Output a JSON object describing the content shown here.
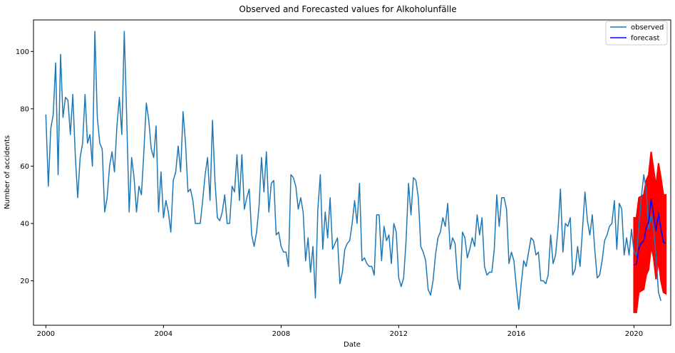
{
  "chart_data": {
    "type": "line",
    "title": "Observed and Forecasted values for Alkoholunfälle",
    "xlabel": "Date",
    "ylabel": "Number of accidents",
    "xlim": [
      1999.58,
      2021.25
    ],
    "ylim": [
      4.5,
      111
    ],
    "x_ticks": [
      2000,
      2004,
      2008,
      2012,
      2016,
      2020
    ],
    "x_tick_labels": [
      "2000",
      "2004",
      "2008",
      "2012",
      "2016",
      "2020"
    ],
    "y_ticks": [
      20,
      40,
      60,
      80,
      100
    ],
    "y_tick_labels": [
      "20",
      "40",
      "60",
      "80",
      "100"
    ],
    "grid": false,
    "legend": {
      "placement": "top-right",
      "entries": [
        "observed",
        "forecast"
      ]
    },
    "colors": {
      "observed": "#1f77b4",
      "forecast": "#0000ff",
      "interval": "#ff0000"
    },
    "series": [
      {
        "name": "observed",
        "start": "2000-01",
        "frequency": "monthly",
        "values": [
          78,
          53,
          73,
          78,
          96,
          57,
          99,
          77,
          84,
          83,
          71,
          85,
          64,
          49,
          63,
          68,
          85,
          68,
          71,
          60,
          107,
          77,
          68,
          66,
          44,
          49,
          60,
          65,
          58,
          74,
          84,
          71,
          107,
          77,
          44,
          63,
          56,
          44,
          53,
          50,
          65,
          82,
          76,
          66,
          63,
          74,
          44,
          58,
          42,
          48,
          44,
          37,
          55,
          58,
          67,
          58,
          79,
          68,
          51,
          52,
          48,
          40,
          40,
          40,
          48,
          57,
          63,
          48,
          76,
          55,
          42,
          41,
          44,
          50,
          40,
          40,
          53,
          51,
          64,
          48,
          64,
          45,
          49,
          52,
          36,
          32,
          37,
          46,
          63,
          51,
          65,
          44,
          54,
          55,
          36,
          37,
          32,
          30,
          30,
          25,
          57,
          56,
          53,
          45,
          49,
          44,
          27,
          35,
          23,
          32,
          14,
          45,
          57,
          31,
          44,
          35,
          49,
          31,
          33,
          35,
          19,
          23,
          31,
          33,
          34,
          40,
          48,
          40,
          54,
          27,
          28,
          26,
          25,
          25,
          22,
          43,
          43,
          27,
          39,
          34,
          36,
          26,
          40,
          37,
          21,
          18,
          21,
          34,
          54,
          43,
          56,
          55,
          49,
          32,
          30,
          27,
          17,
          15,
          20,
          29,
          35,
          37,
          42,
          39,
          47,
          31,
          35,
          33,
          21,
          17,
          37,
          35,
          28,
          31,
          35,
          32,
          43,
          36,
          42,
          25,
          22,
          23,
          23,
          31,
          50,
          39,
          49,
          49,
          45,
          26,
          30,
          27,
          18,
          10,
          19,
          27,
          25,
          30,
          35,
          34,
          29,
          30,
          20,
          20,
          19,
          22,
          36,
          26,
          29,
          38,
          52,
          30,
          40,
          39,
          42,
          22,
          24,
          32,
          25,
          38,
          51,
          41,
          36,
          43,
          31,
          21,
          22,
          27,
          34,
          36,
          39,
          40,
          48,
          31,
          47,
          45,
          29,
          35,
          29,
          38,
          30,
          29,
          39,
          49,
          57,
          52,
          38,
          43,
          38,
          29,
          16,
          13
        ]
      },
      {
        "name": "forecast",
        "start": "2020-01",
        "frequency": "monthly",
        "values": [
          25.5,
          25.8,
          31.5,
          33.2,
          33.8,
          38.5,
          40.5,
          48.5,
          43.0,
          37.5,
          43.5,
          38.0,
          33.5,
          33.0
        ],
        "lower": [
          9,
          9,
          16,
          16.5,
          17,
          22,
          24,
          32,
          28,
          20.5,
          27,
          20,
          16,
          15.5
        ],
        "upper": [
          42,
          42,
          49,
          49.5,
          50,
          55,
          57,
          65,
          59,
          53,
          61,
          56,
          50,
          50
        ]
      }
    ]
  }
}
